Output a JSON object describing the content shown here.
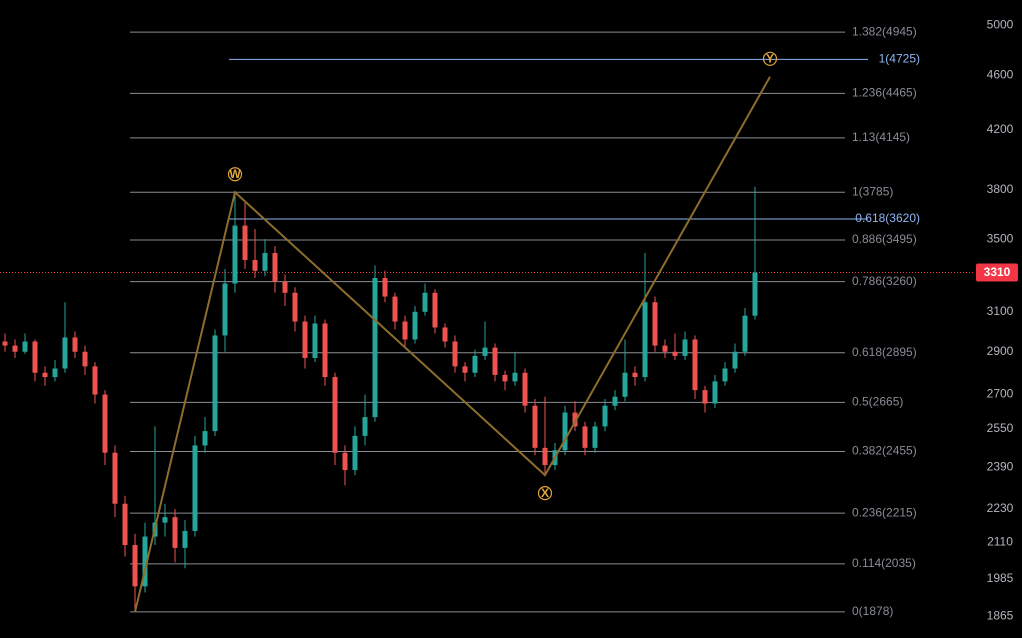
{
  "chart_data": {
    "type": "candlestick",
    "log_scale": true,
    "ylim": [
      1798,
      5218
    ],
    "xlim": [
      -0.5,
      97
    ],
    "yticks": [
      5000,
      4600,
      4200,
      3800,
      3500,
      3100,
      2900,
      2700,
      2550,
      2390,
      2230,
      2110,
      1985,
      1865
    ],
    "up_color": "#26a69a",
    "down_color": "#ef5350",
    "x": [
      0,
      1,
      2,
      3,
      4,
      5,
      6,
      7,
      8,
      9,
      10,
      11,
      12,
      13,
      14,
      15,
      16,
      17,
      18,
      19,
      20,
      21,
      22,
      23,
      24,
      25,
      26,
      27,
      28,
      29,
      30,
      31,
      32,
      33,
      34,
      35,
      36,
      37,
      38,
      39,
      40,
      41,
      42,
      43,
      44,
      45,
      46,
      47,
      48,
      49,
      50,
      51,
      52,
      53,
      54,
      55,
      56,
      57,
      58,
      59,
      60,
      61,
      62,
      63,
      64,
      65,
      66,
      67,
      68,
      69,
      70,
      71,
      72,
      73,
      74,
      75
    ],
    "ohlc": [
      [
        2950,
        2990,
        2900,
        2930
      ],
      [
        2930,
        2960,
        2870,
        2900
      ],
      [
        2900,
        2990,
        2890,
        2950
      ],
      [
        2950,
        2960,
        2760,
        2800
      ],
      [
        2800,
        2830,
        2740,
        2780
      ],
      [
        2780,
        2860,
        2760,
        2820
      ],
      [
        2820,
        3150,
        2800,
        2970
      ],
      [
        2970,
        3000,
        2870,
        2900
      ],
      [
        2900,
        2930,
        2790,
        2830
      ],
      [
        2830,
        2850,
        2660,
        2700
      ],
      [
        2700,
        2720,
        2400,
        2450
      ],
      [
        2450,
        2480,
        2200,
        2250
      ],
      [
        2250,
        2280,
        2060,
        2100
      ],
      [
        2100,
        2140,
        1878,
        1960
      ],
      [
        1960,
        2180,
        1940,
        2130
      ],
      [
        2130,
        2560,
        2100,
        2180
      ],
      [
        2180,
        2250,
        2130,
        2200
      ],
      [
        2200,
        2230,
        2040,
        2090
      ],
      [
        2090,
        2190,
        2020,
        2150
      ],
      [
        2150,
        2520,
        2130,
        2480
      ],
      [
        2480,
        2600,
        2450,
        2540
      ],
      [
        2540,
        3010,
        2520,
        2980
      ],
      [
        2980,
        3330,
        2900,
        3250
      ],
      [
        3250,
        3785,
        3200,
        3580
      ],
      [
        3580,
        3720,
        3330,
        3380
      ],
      [
        3380,
        3560,
        3280,
        3320
      ],
      [
        3320,
        3500,
        3290,
        3420
      ],
      [
        3420,
        3460,
        3200,
        3260
      ],
      [
        3260,
        3300,
        3130,
        3200
      ],
      [
        3200,
        3230,
        3000,
        3050
      ],
      [
        3050,
        3080,
        2820,
        2870
      ],
      [
        2870,
        3080,
        2850,
        3040
      ],
      [
        3040,
        3060,
        2740,
        2780
      ],
      [
        2780,
        2800,
        2400,
        2450
      ],
      [
        2450,
        2480,
        2320,
        2380
      ],
      [
        2380,
        2560,
        2360,
        2520
      ],
      [
        2520,
        2700,
        2480,
        2600
      ],
      [
        2600,
        3350,
        2580,
        3280
      ],
      [
        3280,
        3320,
        3150,
        3180
      ],
      [
        3180,
        3200,
        3010,
        3050
      ],
      [
        3050,
        3080,
        2920,
        2960
      ],
      [
        2960,
        3130,
        2940,
        3100
      ],
      [
        3100,
        3250,
        3080,
        3200
      ],
      [
        3200,
        3220,
        2990,
        3020
      ],
      [
        3020,
        3040,
        2920,
        2950
      ],
      [
        2950,
        2980,
        2800,
        2830
      ],
      [
        2830,
        2850,
        2760,
        2800
      ],
      [
        2800,
        2910,
        2780,
        2880
      ],
      [
        2880,
        3050,
        2860,
        2920
      ],
      [
        2920,
        2940,
        2760,
        2790
      ],
      [
        2790,
        2810,
        2720,
        2760
      ],
      [
        2760,
        2900,
        2740,
        2800
      ],
      [
        2800,
        2820,
        2620,
        2650
      ],
      [
        2650,
        2680,
        2440,
        2470
      ],
      [
        2470,
        2690,
        2360,
        2400
      ],
      [
        2400,
        2490,
        2380,
        2460
      ],
      [
        2460,
        2650,
        2440,
        2620
      ],
      [
        2620,
        2670,
        2540,
        2560
      ],
      [
        2560,
        2580,
        2440,
        2470
      ],
      [
        2470,
        2580,
        2450,
        2560
      ],
      [
        2560,
        2680,
        2540,
        2650
      ],
      [
        2650,
        2720,
        2630,
        2690
      ],
      [
        2690,
        2960,
        2670,
        2800
      ],
      [
        2800,
        2830,
        2740,
        2780
      ],
      [
        2780,
        3420,
        2760,
        3150
      ],
      [
        3150,
        3180,
        2900,
        2930
      ],
      [
        2930,
        2960,
        2870,
        2900
      ],
      [
        2900,
        2990,
        2860,
        2880
      ],
      [
        2880,
        3000,
        2860,
        2960
      ],
      [
        2960,
        2980,
        2680,
        2720
      ],
      [
        2720,
        2740,
        2620,
        2660
      ],
      [
        2660,
        2790,
        2640,
        2760
      ],
      [
        2760,
        2850,
        2740,
        2820
      ],
      [
        2820,
        2940,
        2800,
        2900
      ],
      [
        2900,
        3120,
        2880,
        3080
      ],
      [
        3080,
        3820,
        3060,
        3310
      ]
    ],
    "levels": [
      {
        "label": "1.382(4945)",
        "value": 4945,
        "color": "#8a8d96"
      },
      {
        "label": "1(4725)",
        "value": 4725,
        "color": "#8fb4f0"
      },
      {
        "label": "1.236(4465)",
        "value": 4465,
        "color": "#8a8d96"
      },
      {
        "label": "1.13(4145)",
        "value": 4145,
        "color": "#8a8d96"
      },
      {
        "label": "1(3785)",
        "value": 3785,
        "color": "#8a8d96"
      },
      {
        "label": "0.618(3620)",
        "value": 3620,
        "color": "#8fb4f0"
      },
      {
        "label": "0.886(3495)",
        "value": 3495,
        "color": "#8a8d96"
      },
      {
        "label": "0.786(3260)",
        "value": 3260,
        "color": "#8a8d96"
      },
      {
        "label": "0.618(2895)",
        "value": 2895,
        "color": "#8a8d96"
      },
      {
        "label": "0.5(2665)",
        "value": 2665,
        "color": "#8a8d96"
      },
      {
        "label": "0.382(2455)",
        "value": 2455,
        "color": "#8a8d96"
      },
      {
        "label": "0.236(2215)",
        "value": 2215,
        "color": "#8a8d96"
      },
      {
        "label": "0.114(2035)",
        "value": 2035,
        "color": "#8a8d96"
      },
      {
        "label": "0(1878)",
        "value": 1878,
        "color": "#8a8d96"
      }
    ],
    "wave": {
      "color": "#8c6d2c",
      "label_color": "#e0a63a",
      "x": [
        13,
        23,
        54,
        76.5
      ],
      "y": [
        1878,
        3785,
        2360,
        4590
      ],
      "labels": [
        null,
        "W",
        "X",
        "Y"
      ]
    },
    "last_price": {
      "value": 3310,
      "label": "3310",
      "color": "#f23645"
    }
  }
}
